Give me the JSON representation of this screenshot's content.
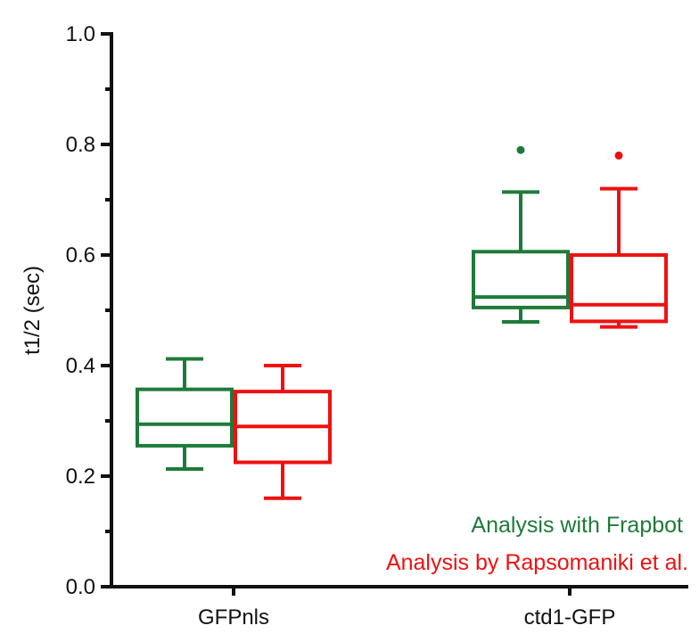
{
  "chart_data": {
    "type": "box",
    "ylabel": "t1/2 (sec)",
    "ylim": [
      0.0,
      1.0
    ],
    "yticks": [
      "0.0",
      "0.2",
      "0.4",
      "0.6",
      "0.8",
      "1.0"
    ],
    "categories": [
      "GFPnls",
      "ctd1-GFP"
    ],
    "series": [
      {
        "name": "Analysis with Frapbot",
        "color": "#1f7a3a",
        "boxes": [
          {
            "category": "GFPnls",
            "whisker_low": 0.213,
            "q1": 0.255,
            "median": 0.294,
            "q3": 0.357,
            "whisker_high": 0.412,
            "outliers": []
          },
          {
            "category": "ctd1-GFP",
            "whisker_low": 0.479,
            "q1": 0.505,
            "median": 0.524,
            "q3": 0.606,
            "whisker_high": 0.714,
            "outliers": [
              0.79
            ]
          }
        ]
      },
      {
        "name": "Analysis by Rapsomaniki et al.",
        "color": "#ee1111",
        "boxes": [
          {
            "category": "GFPnls",
            "whisker_low": 0.16,
            "q1": 0.225,
            "median": 0.29,
            "q3": 0.353,
            "whisker_high": 0.4,
            "outliers": []
          },
          {
            "category": "ctd1-GFP",
            "whisker_low": 0.47,
            "q1": 0.48,
            "median": 0.51,
            "q3": 0.6,
            "whisker_high": 0.72,
            "outliers": [
              0.78
            ]
          }
        ]
      }
    ],
    "legend_position": "bottom-right"
  }
}
